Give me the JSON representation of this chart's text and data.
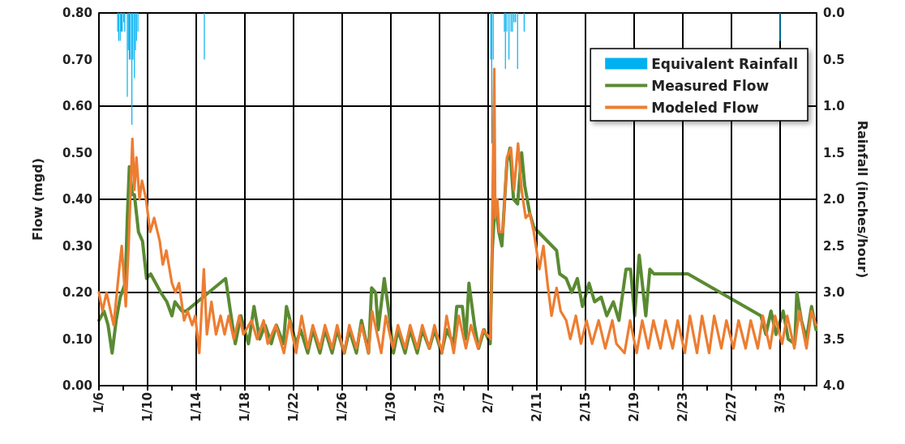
{
  "chart_data": {
    "type": "line",
    "xlabel": null,
    "ylabel": "Flow (mgd)",
    "y2label": "Rainfall (inches/hour)",
    "xlim": [
      "--01-06T00:00",
      "--03-06T00:00"
    ],
    "xticks": [
      {
        "value": "--01-06",
        "label": "1/6"
      },
      {
        "value": "--01-08",
        "label": null
      },
      {
        "value": "--01-10",
        "label": "1/10"
      },
      {
        "value": "--01-12",
        "label": null
      },
      {
        "value": "--01-14",
        "label": "1/14"
      },
      {
        "value": "--01-16",
        "label": null
      },
      {
        "value": "--01-18",
        "label": "1/18"
      },
      {
        "value": "--01-20",
        "label": null
      },
      {
        "value": "--01-22",
        "label": "1/22"
      },
      {
        "value": "--01-24",
        "label": null
      },
      {
        "value": "--01-26",
        "label": "1/26"
      },
      {
        "value": "--01-28",
        "label": null
      },
      {
        "value": "--01-30",
        "label": "1/30"
      },
      {
        "value": "--02-01",
        "label": null
      },
      {
        "value": "--02-03",
        "label": "2/3"
      },
      {
        "value": "--02-05",
        "label": null
      },
      {
        "value": "--02-07",
        "label": "2/7"
      },
      {
        "value": "--02-09",
        "label": null
      },
      {
        "value": "--02-11",
        "label": "2/11"
      },
      {
        "value": "--02-13",
        "label": null
      },
      {
        "value": "--02-15",
        "label": "2/15"
      },
      {
        "value": "--02-17",
        "label": null
      },
      {
        "value": "--02-19",
        "label": "2/19"
      },
      {
        "value": "--02-21",
        "label": null
      },
      {
        "value": "--02-23",
        "label": "2/23"
      },
      {
        "value": "--02-25",
        "label": null
      },
      {
        "value": "--02-27",
        "label": "2/27"
      },
      {
        "value": "--03-01",
        "label": null
      },
      {
        "value": "--03-03",
        "label": "3/3"
      },
      {
        "value": "--03-05",
        "label": null
      }
    ],
    "ylim": [
      0,
      0.8
    ],
    "yticks": [
      {
        "value": 0,
        "label": "0.00"
      },
      {
        "value": 0.1,
        "label": "0.10"
      },
      {
        "value": 0.2,
        "label": "0.20"
      },
      {
        "value": 0.3,
        "label": "0.30"
      },
      {
        "value": 0.4,
        "label": "0.40"
      },
      {
        "value": 0.5,
        "label": "0.50"
      },
      {
        "value": 0.6,
        "label": "0.60"
      },
      {
        "value": 0.7,
        "label": "0.70"
      },
      {
        "value": 0.8,
        "label": "0.80"
      }
    ],
    "y2lim": [
      4.0,
      0.0
    ],
    "y2ticks": [
      {
        "value": 0,
        "label": "0.0"
      },
      {
        "value": 0.5,
        "label": "0.5"
      },
      {
        "value": 1,
        "label": "1.0"
      },
      {
        "value": 1.5,
        "label": "1.5"
      },
      {
        "value": 2,
        "label": "2.0"
      },
      {
        "value": 2.5,
        "label": "2.5"
      },
      {
        "value": 3,
        "label": "3.0"
      },
      {
        "value": 3.5,
        "label": "3.5"
      },
      {
        "value": 4,
        "label": "4.0"
      }
    ],
    "grid": true,
    "legend": "top right",
    "marker": "none",
    "line_style": "solid",
    "series": [
      {
        "name": "Equivalent Rainfall",
        "type": "bar",
        "axis": "y2",
        "color": "#00b0f0",
        "x": [
          "--01-07T13:00",
          "--01-07T15:00",
          "--01-07T18:00",
          "--01-07T20:00",
          "--01-07T22:00",
          "--01-08T01:00",
          "--01-08T03:00",
          "--01-08T08:00",
          "--01-08T10:00",
          "--01-08T12:00",
          "--01-08T14:00",
          "--01-08T17:00",
          "--01-08T19:00",
          "--01-08T22:00",
          "--01-09T00:00",
          "--01-09T02:00",
          "--01-09T05:00",
          "--01-14T16:00",
          "--02-07T05:00",
          "--02-07T07:00",
          "--02-07T10:00",
          "--02-08T08:00",
          "--02-08T10:00",
          "--02-08T13:00",
          "--02-08T17:00",
          "--02-08T21:00",
          "--02-09T00:00",
          "--02-09T03:00",
          "--02-09T06:00",
          "--02-09T10:00",
          "--02-09T23:00",
          "--03-03T00:00"
        ],
        "values": [
          0.2,
          0.3,
          0.3,
          0.2,
          0.2,
          0.1,
          0.2,
          0.9,
          0.4,
          0.5,
          0.5,
          1.2,
          0.5,
          0.7,
          0.4,
          0.3,
          0.2,
          0.5,
          0.5,
          1.4,
          0.5,
          0.2,
          0.6,
          0.2,
          0.5,
          0.2,
          0.2,
          0.1,
          0.1,
          0.6,
          0.2,
          0.3
        ]
      },
      {
        "name": "Measured Flow",
        "color": "#5a8a32",
        "x": [
          "--01-06T00:00",
          "--01-06T10:00",
          "--01-06T18:00",
          "--01-07T02:00",
          "--01-07T10:00",
          "--01-07T18:00",
          "--01-08T04:00",
          "--01-08T08:00",
          "--01-08T12:00",
          "--01-08T18:00",
          "--01-08T22:00",
          "--01-09T06:00",
          "--01-09T14:00",
          "--01-09T22:00",
          "--01-10T06:00",
          "--01-10T16:00",
          "--01-11T02:00",
          "--01-11T14:00",
          "--01-12T00:00",
          "--01-12T06:00",
          "--01-12T20:00",
          "--01-13T04:00",
          "--01-16T10:00",
          "--01-16T18:00",
          "--01-17T05:00",
          "--01-17T16:00",
          "--01-18T07:00",
          "--01-18T18:00",
          "--01-19T05:00",
          "--01-19T16:00",
          "--01-20T04:00",
          "--01-20T14:00",
          "--01-21T04:00",
          "--01-21T10:00",
          "--01-22T05:00",
          "--01-22T14:00",
          "--01-23T04:00",
          "--01-23T14:00",
          "--01-24T04:00",
          "--01-24T14:00",
          "--01-25T04:00",
          "--01-25T14:00",
          "--01-26T04:00",
          "--01-26T14:00",
          "--01-27T04:00",
          "--01-27T14:00",
          "--01-28T04:00",
          "--01-28T10:00",
          "--01-28T18:00",
          "--01-28T23:00",
          "--01-29T11:00",
          "--01-29T21:00",
          "--01-30T05:00",
          "--01-30T14:00",
          "--01-31T04:00",
          "--01-31T14:00",
          "--02-01T04:00",
          "--02-01T14:00",
          "--02-02T04:00",
          "--02-02T14:00",
          "--02-03T04:00",
          "--02-03T14:00",
          "--02-04T04:00",
          "--02-04T10:00",
          "--02-04T21:00",
          "--02-05T04:00",
          "--02-05T10:00",
          "--02-05T21:00",
          "--02-06T05:00",
          "--02-06T16:00",
          "--02-07T04:00",
          "--02-07T08:00",
          "--02-07T14:00",
          "--02-07T21:00",
          "--02-08T03:00",
          "--02-08T13:00",
          "--02-08T19:00",
          "--02-09T02:00",
          "--02-09T10:00",
          "--02-09T18:00",
          "--02-10T00:00",
          "--02-10T10:00",
          "--02-10T18:00",
          "--02-12T15:00",
          "--02-12T21:00",
          "--02-13T10:00",
          "--02-13T21:00",
          "--02-14T08:00",
          "--02-14T18:00",
          "--02-15T07:00",
          "--02-15T18:00",
          "--02-16T07:00",
          "--02-16T18:00",
          "--02-17T07:00",
          "--02-17T18:00",
          "--02-18T08:00",
          "--02-18T17:00",
          "--02-19T01:00",
          "--02-19T10:00",
          "--02-19T23:00",
          "--02-20T07:00",
          "--02-20T15:00",
          "--02-23T10:00",
          "--03-01T10:00",
          "--03-01T20:00",
          "--03-02T06:00",
          "--03-02T16:00",
          "--03-03T06:00",
          "--03-03T16:00",
          "--03-04T05:00",
          "--03-04T09:00",
          "--03-04T18:00",
          "--03-05T04:00",
          "--03-05T14:00",
          "--03-05T23:00"
        ],
        "values": [
          0.14,
          0.16,
          0.13,
          0.07,
          0.14,
          0.19,
          0.22,
          0.36,
          0.47,
          0.41,
          0.41,
          0.33,
          0.31,
          0.23,
          0.24,
          0.22,
          0.2,
          0.18,
          0.15,
          0.18,
          0.16,
          0.16,
          0.23,
          0.17,
          0.09,
          0.15,
          0.09,
          0.17,
          0.1,
          0.13,
          0.09,
          0.13,
          0.09,
          0.17,
          0.09,
          0.12,
          0.07,
          0.12,
          0.07,
          0.12,
          0.07,
          0.12,
          0.07,
          0.12,
          0.07,
          0.14,
          0.07,
          0.21,
          0.2,
          0.12,
          0.23,
          0.15,
          0.07,
          0.12,
          0.07,
          0.12,
          0.07,
          0.12,
          0.08,
          0.12,
          0.07,
          0.12,
          0.09,
          0.17,
          0.17,
          0.1,
          0.22,
          0.13,
          0.08,
          0.12,
          0.09,
          0.29,
          0.4,
          0.33,
          0.3,
          0.48,
          0.51,
          0.4,
          0.39,
          0.5,
          0.43,
          0.37,
          0.34,
          0.29,
          0.24,
          0.23,
          0.2,
          0.23,
          0.17,
          0.22,
          0.18,
          0.19,
          0.15,
          0.18,
          0.14,
          0.25,
          0.25,
          0.15,
          0.28,
          0.15,
          0.25,
          0.24,
          0.24,
          0.15,
          0.11,
          0.16,
          0.11,
          0.16,
          0.1,
          0.09,
          0.2,
          0.14,
          0.1,
          0.17,
          0.12
        ]
      },
      {
        "name": "Modeled Flow",
        "color": "#ed7d31",
        "x": [
          "--01-06T00:00",
          "--01-06T07:00",
          "--01-06T15:00",
          "--01-07T05:00",
          "--01-07T16:00",
          "--01-07T21:00",
          "--01-08T05:00",
          "--01-08T11:00",
          "--01-08T18:00",
          "--01-08T22:00",
          "--01-09T02:00",
          "--01-09T08:00",
          "--01-09T13:00",
          "--01-09T21:00",
          "--01-10T05:00",
          "--01-10T13:00",
          "--01-11T00:00",
          "--01-11T06:00",
          "--01-11T13:00",
          "--01-12T00:00",
          "--01-12T07:00",
          "--01-12T14:00",
          "--01-13T00:00",
          "--01-13T07:00",
          "--01-13T16:00",
          "--01-13T22:00",
          "--01-14T06:00",
          "--01-14T15:00",
          "--01-14T21:00",
          "--01-15T06:00",
          "--01-15T15:00",
          "--01-16T00:00",
          "--01-16T08:00",
          "--01-16T16:00",
          "--01-17T02:00",
          "--01-17T13:00",
          "--01-17T21:00",
          "--01-18T13:00",
          "--01-19T00:00",
          "--01-19T13:00",
          "--01-19T21:00",
          "--01-20T13:00",
          "--01-21T05:00",
          "--01-21T16:00",
          "--01-22T05:00",
          "--01-22T16:00",
          "--01-23T04:00",
          "--01-23T14:00",
          "--01-24T04:00",
          "--01-24T14:00",
          "--01-25T04:00",
          "--01-25T14:00",
          "--01-26T04:00",
          "--01-26T14:00",
          "--01-27T04:00",
          "--01-27T14:00",
          "--01-28T04:00",
          "--01-28T11:00",
          "--01-29T05:00",
          "--01-29T14:00",
          "--01-30T04:00",
          "--01-30T14:00",
          "--01-31T04:00",
          "--01-31T14:00",
          "--02-01T04:00",
          "--02-01T14:00",
          "--02-02T04:00",
          "--02-02T14:00",
          "--02-03T05:00",
          "--02-03T14:00",
          "--02-04T04:00",
          "--02-04T14:00",
          "--02-05T04:00",
          "--02-05T14:00",
          "--02-06T04:00",
          "--02-06T14:00",
          "--02-07T05:00",
          "--02-07T12:00",
          "--02-07T14:00",
          "--02-07T18:00",
          "--02-07T22:00",
          "--02-08T05:00",
          "--02-08T13:00",
          "--02-08T21:00",
          "--02-09T03:00",
          "--02-09T11:00",
          "--02-09T18:00",
          "--02-10T02:00",
          "--02-10T10:00",
          "--02-10T18:00",
          "--02-11T05:00",
          "--02-11T13:00",
          "--02-11T21:00",
          "--02-12T05:00",
          "--02-12T15:00",
          "--02-12T23:00",
          "--02-13T10:00",
          "--02-13T18:00",
          "--02-14T05:00",
          "--02-14T15:00",
          "--02-15T02:00",
          "--02-15T13:00",
          "--02-16T02:00",
          "--02-16T15:00",
          "--02-17T05:00",
          "--02-17T13:00",
          "--02-18T05:00",
          "--02-18T16:00",
          "--02-19T05:00",
          "--02-19T16:00",
          "--02-20T04:00",
          "--02-20T14:00",
          "--02-21T04:00",
          "--02-21T14:00",
          "--02-22T04:00",
          "--02-22T14:00",
          "--02-23T04:00",
          "--02-23T14:00",
          "--02-24T04:00",
          "--02-24T14:00",
          "--02-25T04:00",
          "--02-25T14:00",
          "--02-26T04:00",
          "--02-26T14:00",
          "--02-27T04:00",
          "--02-27T14:00",
          "--02-28T04:00",
          "--02-28T14:00",
          "--03-01T04:00",
          "--03-01T14:00",
          "--03-02T04:00",
          "--03-02T14:00",
          "--03-03T04:00",
          "--03-03T14:00",
          "--03-04T04:00",
          "--03-04T14:00",
          "--03-05T04:00",
          "--03-05T14:00",
          "--03-05T23:00"
        ],
        "values": [
          0.2,
          0.16,
          0.2,
          0.13,
          0.25,
          0.3,
          0.17,
          0.31,
          0.53,
          0.42,
          0.49,
          0.4,
          0.44,
          0.4,
          0.33,
          0.36,
          0.31,
          0.26,
          0.29,
          0.22,
          0.2,
          0.22,
          0.14,
          0.16,
          0.13,
          0.15,
          0.07,
          0.25,
          0.11,
          0.18,
          0.11,
          0.15,
          0.11,
          0.15,
          0.1,
          0.15,
          0.11,
          0.14,
          0.1,
          0.14,
          0.09,
          0.13,
          0.07,
          0.14,
          0.07,
          0.15,
          0.08,
          0.13,
          0.08,
          0.13,
          0.08,
          0.13,
          0.07,
          0.13,
          0.08,
          0.13,
          0.07,
          0.16,
          0.07,
          0.15,
          0.08,
          0.13,
          0.08,
          0.13,
          0.08,
          0.13,
          0.08,
          0.13,
          0.07,
          0.15,
          0.07,
          0.15,
          0.08,
          0.13,
          0.08,
          0.12,
          0.1,
          0.68,
          0.36,
          0.4,
          0.33,
          0.33,
          0.49,
          0.51,
          0.42,
          0.52,
          0.42,
          0.36,
          0.37,
          0.33,
          0.25,
          0.3,
          0.22,
          0.15,
          0.21,
          0.16,
          0.14,
          0.1,
          0.15,
          0.09,
          0.14,
          0.09,
          0.14,
          0.08,
          0.14,
          0.09,
          0.07,
          0.14,
          0.07,
          0.14,
          0.08,
          0.14,
          0.08,
          0.14,
          0.08,
          0.14,
          0.07,
          0.15,
          0.07,
          0.15,
          0.07,
          0.15,
          0.08,
          0.14,
          0.08,
          0.14,
          0.08,
          0.14,
          0.08,
          0.15,
          0.08,
          0.15,
          0.09,
          0.15,
          0.08,
          0.16,
          0.08,
          0.16,
          0.13
        ]
      }
    ]
  }
}
